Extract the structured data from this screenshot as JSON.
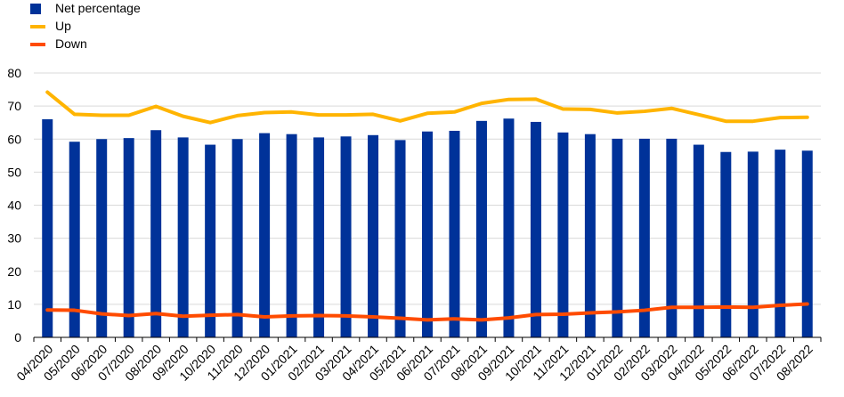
{
  "chart_data": {
    "type": "bar",
    "categories": [
      "04/2020",
      "05/2020",
      "06/2020",
      "07/2020",
      "08/2020",
      "09/2020",
      "10/2020",
      "11/2020",
      "12/2020",
      "01/2021",
      "02/2021",
      "03/2021",
      "04/2021",
      "05/2021",
      "06/2021",
      "07/2021",
      "08/2021",
      "09/2021",
      "10/2021",
      "11/2021",
      "12/2021",
      "01/2022",
      "02/2022",
      "03/2022",
      "04/2022",
      "05/2022",
      "06/2022",
      "07/2022",
      "08/2022"
    ],
    "series": [
      {
        "name": "Net percentage",
        "kind": "bar",
        "color": "#003299",
        "values": [
          66,
          59.2,
          60,
          60.3,
          62.7,
          60.5,
          58.3,
          60,
          61.8,
          61.5,
          60.5,
          60.8,
          61.2,
          59.7,
          62.3,
          62.5,
          65.5,
          66.2,
          65.2,
          62,
          61.5,
          60.1,
          60.1,
          60.1,
          58.3,
          56.1,
          56.2,
          56.8,
          56.5
        ]
      },
      {
        "name": "Up",
        "kind": "line",
        "color": "#ffb400",
        "values": [
          74.2,
          67.5,
          67.2,
          67.2,
          69.9,
          66.9,
          65,
          67.1,
          68,
          68.2,
          67.3,
          67.3,
          67.5,
          65.5,
          67.8,
          68.2,
          70.8,
          72,
          72.1,
          69.1,
          69,
          67.9,
          68.4,
          69.3,
          67.4,
          65.4,
          65.4,
          66.5,
          66.6
        ]
      },
      {
        "name": "Down",
        "kind": "line",
        "color": "#ff4b00",
        "values": [
          8.3,
          8.2,
          7.1,
          6.6,
          7.2,
          6.4,
          6.7,
          6.9,
          6.2,
          6.5,
          6.6,
          6.5,
          6.2,
          5.8,
          5.3,
          5.6,
          5.3,
          5.9,
          6.9,
          7,
          7.4,
          7.7,
          8.2,
          9.1,
          9.1,
          9.2,
          9.1,
          9.7,
          10.1
        ]
      }
    ],
    "y_ticks": [
      "0",
      "10",
      "20",
      "30",
      "40",
      "50",
      "60",
      "70",
      "80"
    ],
    "ylim": [
      0,
      80
    ],
    "grid": "horizontal",
    "legend_position": "top-left"
  }
}
